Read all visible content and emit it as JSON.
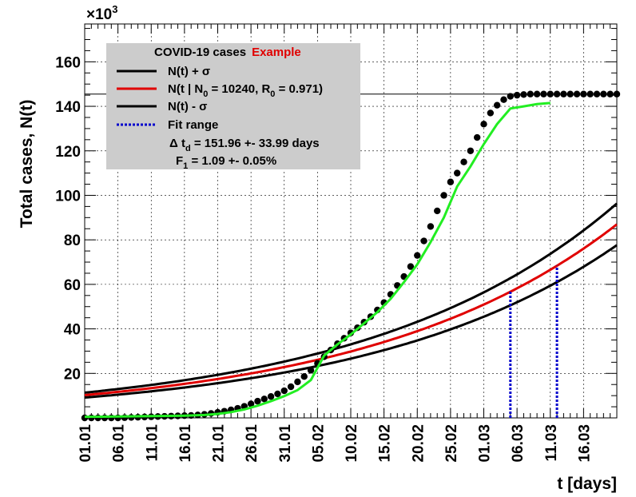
{
  "chart_data": {
    "type": "line",
    "xlabel": "t [days]",
    "ylabel": "Total cases, N(t)",
    "y_multiplier": "×10",
    "y_multiplier_exp": "3",
    "xlim": [
      0,
      80
    ],
    "ylim": [
      0,
      177
    ],
    "x_ticks": [
      {
        "x": 0,
        "label": "01.01"
      },
      {
        "x": 5,
        "label": "06.01"
      },
      {
        "x": 10,
        "label": "11.01"
      },
      {
        "x": 15,
        "label": "16.01"
      },
      {
        "x": 20,
        "label": "21.01"
      },
      {
        "x": 25,
        "label": "26.01"
      },
      {
        "x": 30,
        "label": "31.01"
      },
      {
        "x": 35,
        "label": "05.02"
      },
      {
        "x": 40,
        "label": "10.02"
      },
      {
        "x": 45,
        "label": "15.02"
      },
      {
        "x": 50,
        "label": "20.02"
      },
      {
        "x": 55,
        "label": "25.02"
      },
      {
        "x": 60,
        "label": "01.03"
      },
      {
        "x": 65,
        "label": "06.03"
      },
      {
        "x": 70,
        "label": "11.03"
      },
      {
        "x": 75,
        "label": "16.03"
      }
    ],
    "y_ticks": [
      20,
      40,
      60,
      80,
      100,
      120,
      140,
      160
    ],
    "legend": {
      "title": "COVID-19 cases",
      "title_highlight": "Example",
      "entries": [
        {
          "label": "N(t) +  σ",
          "color": "#000000",
          "style": "solid"
        },
        {
          "label_parts": [
            "N(t | N",
            "0",
            " = 10240, R",
            "0",
            " =  0.971)"
          ],
          "color": "#e00000",
          "style": "solid"
        },
        {
          "label": "N(t) -  σ",
          "color": "#000000",
          "style": "solid"
        },
        {
          "label": "Fit range",
          "color": "#0000cc",
          "style": "dotted"
        }
      ],
      "stat1_parts": [
        "Δ t",
        "d",
        " = 151.96 +- 33.99 days"
      ],
      "stat2_parts": [
        "F",
        "1",
        " =  1.09 +- 0.05%"
      ]
    },
    "model_line": {
      "y0": 10.24,
      "growth_per_day": 0.0271,
      "sigma_band": 1.1
    },
    "plateau_line_y": 145.5,
    "fit_range": [
      64,
      71
    ],
    "data_points": {
      "x": [
        0,
        1,
        2,
        3,
        4,
        5,
        6,
        7,
        8,
        9,
        10,
        11,
        12,
        13,
        14,
        15,
        16,
        17,
        18,
        19,
        20,
        21,
        22,
        23,
        24,
        25,
        26,
        27,
        28,
        29,
        30,
        31,
        32,
        33,
        34,
        35,
        36,
        37,
        38,
        39,
        40,
        41,
        42,
        43,
        44,
        45,
        46,
        47,
        48,
        49,
        50,
        51,
        52,
        53,
        54,
        55,
        56,
        57,
        58,
        59,
        60,
        61,
        62,
        63,
        64,
        65,
        66,
        67,
        68,
        69,
        70,
        71,
        72,
        73,
        74,
        75,
        76,
        77,
        78,
        79,
        80
      ],
      "y": [
        0,
        0,
        0,
        0,
        0,
        0,
        0.1,
        0.2,
        0.3,
        0.4,
        0.5,
        0.6,
        0.7,
        0.8,
        0.9,
        1.0,
        1.1,
        1.3,
        1.6,
        2.0,
        2.5,
        3.0,
        3.6,
        4.3,
        5.2,
        6.3,
        7.5,
        8.5,
        9.6,
        10.8,
        12.2,
        14.0,
        16.2,
        18.6,
        21.4,
        24.5,
        27.5,
        30.5,
        33.3,
        35.8,
        38.2,
        40.5,
        43.0,
        45.5,
        48.5,
        51.8,
        55.5,
        59.5,
        63.5,
        68.0,
        73.0,
        79.5,
        86.0,
        93.0,
        100.0,
        106.0,
        110.0,
        115.0,
        120.0,
        126.0,
        132.0,
        137.0,
        140.5,
        143.0,
        144.5,
        145.0,
        145.3,
        145.5,
        145.5,
        145.5,
        145.5,
        145.5,
        145.5,
        145.5,
        145.5,
        145.5,
        145.5,
        145.5,
        145.5,
        145.5,
        145.5
      ]
    },
    "smooth_fit": {
      "x": [
        0,
        5,
        10,
        15,
        18,
        20,
        22,
        24,
        26,
        28,
        30,
        32,
        34,
        36,
        38,
        40,
        42,
        44,
        46,
        48,
        50,
        52,
        54,
        56,
        58,
        60,
        62,
        64,
        66,
        68,
        70
      ],
      "y": [
        0.5,
        0.6,
        0.8,
        1.0,
        1.3,
        1.8,
        2.6,
        3.8,
        5.5,
        7.5,
        9.8,
        12.5,
        17.0,
        28.0,
        33.0,
        37.5,
        42.5,
        47.5,
        53.5,
        61.0,
        69.0,
        79.0,
        90.0,
        104.0,
        113.0,
        123.0,
        132.0,
        139.0,
        140.0,
        141.0,
        141.5
      ]
    },
    "colors": {
      "model": "#e00000",
      "band": "#000000",
      "fit": "#22ee22",
      "points": "#000000",
      "fit_range": "#0000cc",
      "legend_bg": "#cccccc",
      "highlight": "#e00000"
    }
  }
}
